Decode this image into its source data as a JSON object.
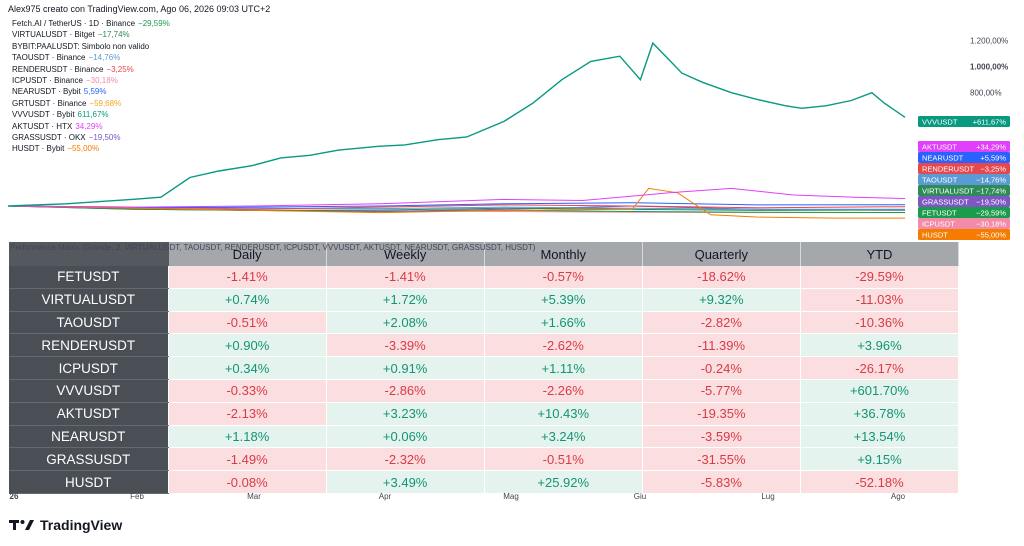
{
  "header": {
    "author_line": "Alex975 creato con TradingView.com, Ago 06, 2026 09:03 UTC+2"
  },
  "legend": [
    {
      "label": "Fetch.AI / TetherUS · 1D · Binance",
      "change": "−29,59%",
      "color": "#1b9c4d"
    },
    {
      "label": "VIRTUALUSDT · Bitget",
      "change": "−17,74%",
      "color": "#2e8b57"
    },
    {
      "label": "BYBIT:PAALUSDT: Simbolo non valido",
      "change": "",
      "color": "#131722"
    },
    {
      "label": "TAOUSDT · Binance",
      "change": "−14,76%",
      "color": "#5b9bd5"
    },
    {
      "label": "RENDERUSDT · Binance",
      "change": "−3,25%",
      "color": "#e5484d"
    },
    {
      "label": "ICPUSDT · Binance",
      "change": "−30,18%",
      "color": "#f28ba8"
    },
    {
      "label": "NEARUSDT · Bybit",
      "change": "5,59%",
      "color": "#2962ff"
    },
    {
      "label": "GRTUSDT · Binance",
      "change": "−59,68%",
      "color": "#f5a623"
    },
    {
      "label": "VVVUSDT · Bybit",
      "change": "611,67%",
      "color": "#089981"
    },
    {
      "label": "AKTUSDT · HTX",
      "change": "34,29%",
      "color": "#e040fb"
    },
    {
      "label": "GRASSUSDT · OKX",
      "change": "−19,50%",
      "color": "#7e57c2"
    },
    {
      "label": "HUSDT · Bybit",
      "change": "−55,00%",
      "color": "#f57c00"
    }
  ],
  "price_axis": {
    "ticks": [
      "1.200,00%",
      "1.000,00%",
      "800,00%"
    ]
  },
  "price_badges": [
    {
      "label": "VVVUSDT",
      "value": "+611,67%",
      "color": "#089981"
    },
    {
      "label": "AKTUSDT",
      "value": "+34,29%",
      "color": "#e040fb"
    },
    {
      "label": "NEARUSDT",
      "value": "+5,59%",
      "color": "#2962ff"
    },
    {
      "label": "RENDERUSDT",
      "value": "−3,25%",
      "color": "#e5484d"
    },
    {
      "label": "TAOUSDT",
      "value": "−14,76%",
      "color": "#5b9bd5"
    },
    {
      "label": "VIRTUALUSDT",
      "value": "−17,74%",
      "color": "#2e8b57"
    },
    {
      "label": "GRASSUSDT",
      "value": "−19,50%",
      "color": "#7e57c2"
    },
    {
      "label": "FETUSDT",
      "value": "−29,59%",
      "color": "#1b9c4d"
    },
    {
      "label": "ICPUSDT",
      "value": "−30,18%",
      "color": "#f28ba8"
    },
    {
      "label": "HUSDT",
      "value": "−55,00%",
      "color": "#f57c00"
    }
  ],
  "time_axis": {
    "labels": [
      "26",
      "Feb",
      "Mar",
      "Apr",
      "Mag",
      "Giu",
      "Lug",
      "Ago"
    ]
  },
  "matrix": {
    "title": "Performance Matrix (Grande, 2, VIRTUALUSDT, TAOUSDT, RENDERUSDT, ICPUSDT, VVVUSDT, AKTUSDT, NEARUSDT, GRASSUSDT, HUSDT)",
    "columns": [
      "Daily",
      "Weekly",
      "Monthly",
      "Quarterly",
      "YTD"
    ],
    "rows": [
      {
        "symbol": "FETUSDT",
        "values": [
          "-1.41%",
          "-1.41%",
          "-0.57%",
          "-18.62%",
          "-29.59%"
        ]
      },
      {
        "symbol": "VIRTUALUSDT",
        "values": [
          "+0.74%",
          "+1.72%",
          "+5.39%",
          "+9.32%",
          "-11.03%"
        ]
      },
      {
        "symbol": "TAOUSDT",
        "values": [
          "-0.51%",
          "+2.08%",
          "+1.66%",
          "-2.82%",
          "-10.36%"
        ]
      },
      {
        "symbol": "RENDERUSDT",
        "values": [
          "+0.90%",
          "-3.39%",
          "-2.62%",
          "-11.39%",
          "+3.96%"
        ]
      },
      {
        "symbol": "ICPUSDT",
        "values": [
          "+0.34%",
          "+0.91%",
          "+1.11%",
          "-0.24%",
          "-26.17%"
        ]
      },
      {
        "symbol": "VVVUSDT",
        "values": [
          "-0.33%",
          "-2.86%",
          "-2.26%",
          "-5.77%",
          "+601.70%"
        ]
      },
      {
        "symbol": "AKTUSDT",
        "values": [
          "-2.13%",
          "+3.23%",
          "+10.43%",
          "-19.35%",
          "+36.78%"
        ]
      },
      {
        "symbol": "NEARUSDT",
        "values": [
          "+1.18%",
          "+0.06%",
          "+3.24%",
          "-3.59%",
          "+13.54%"
        ]
      },
      {
        "symbol": "GRASSUSDT",
        "values": [
          "-1.49%",
          "-2.32%",
          "-0.51%",
          "-31.55%",
          "+9.15%"
        ]
      },
      {
        "symbol": "HUSDT",
        "values": [
          "-0.08%",
          "+3.49%",
          "+25.92%",
          "-5.83%",
          "-52.18%"
        ]
      }
    ]
  },
  "brand": {
    "name": "TradingView"
  },
  "chart_data": {
    "type": "line",
    "y_unit": "%",
    "ylim": [
      -60,
      1250
    ],
    "series": [
      {
        "name": "VVVUSDT",
        "color": "#089981",
        "points": [
          [
            "2026-01-01",
            0
          ],
          [
            "2026-01-15",
            10
          ],
          [
            "2026-01-31",
            30
          ],
          [
            "2026-02-07",
            40
          ],
          [
            "2026-02-14",
            150
          ],
          [
            "2026-02-21",
            200
          ],
          [
            "2026-03-01",
            240
          ],
          [
            "2026-03-08",
            300
          ],
          [
            "2026-03-15",
            320
          ],
          [
            "2026-03-22",
            360
          ],
          [
            "2026-04-01",
            390
          ],
          [
            "2026-04-07",
            400
          ],
          [
            "2026-04-15",
            440
          ],
          [
            "2026-04-22",
            460
          ],
          [
            "2026-05-01",
            580
          ],
          [
            "2026-05-08",
            720
          ],
          [
            "2026-05-15",
            900
          ],
          [
            "2026-05-22",
            1040
          ],
          [
            "2026-05-29",
            1080
          ],
          [
            "2026-06-03",
            900
          ],
          [
            "2026-06-06",
            1180
          ],
          [
            "2026-06-10",
            1050
          ],
          [
            "2026-06-13",
            950
          ],
          [
            "2026-06-18",
            880
          ],
          [
            "2026-06-25",
            800
          ],
          [
            "2026-07-01",
            750
          ],
          [
            "2026-07-08",
            700
          ],
          [
            "2026-07-12",
            680
          ],
          [
            "2026-07-18",
            700
          ],
          [
            "2026-07-24",
            740
          ],
          [
            "2026-07-29",
            800
          ],
          [
            "2026-08-01",
            720
          ],
          [
            "2026-08-06",
            611.67
          ]
        ]
      },
      {
        "name": "AKTUSDT",
        "color": "#e040fb",
        "points": [
          [
            "2026-01-01",
            0
          ],
          [
            "2026-02-01",
            -5
          ],
          [
            "2026-03-01",
            0
          ],
          [
            "2026-04-01",
            10
          ],
          [
            "2026-05-01",
            30
          ],
          [
            "2026-05-20",
            25
          ],
          [
            "2026-06-10",
            60
          ],
          [
            "2026-06-25",
            80
          ],
          [
            "2026-07-10",
            50
          ],
          [
            "2026-07-25",
            40
          ],
          [
            "2026-08-06",
            34.29
          ]
        ]
      },
      {
        "name": "HUSDT",
        "color": "#f57c00",
        "points": [
          [
            "2026-01-01",
            0
          ],
          [
            "2026-02-01",
            -10
          ],
          [
            "2026-03-01",
            -20
          ],
          [
            "2026-04-01",
            -30
          ],
          [
            "2026-05-01",
            -20
          ],
          [
            "2026-06-01",
            -15
          ],
          [
            "2026-06-05",
            80
          ],
          [
            "2026-06-12",
            60
          ],
          [
            "2026-06-20",
            -40
          ],
          [
            "2026-07-01",
            -50
          ],
          [
            "2026-07-20",
            -55
          ],
          [
            "2026-08-06",
            -55
          ]
        ]
      },
      {
        "name": "NEARUSDT",
        "color": "#2962ff",
        "points": [
          [
            "2026-01-01",
            0
          ],
          [
            "2026-02-01",
            -8
          ],
          [
            "2026-03-01",
            -5
          ],
          [
            "2026-04-01",
            0
          ],
          [
            "2026-05-01",
            10
          ],
          [
            "2026-06-01",
            15
          ],
          [
            "2026-07-01",
            5
          ],
          [
            "2026-08-06",
            5.59
          ]
        ]
      },
      {
        "name": "RENDERUSDT",
        "color": "#e5484d",
        "points": [
          [
            "2026-01-01",
            0
          ],
          [
            "2026-02-01",
            -10
          ],
          [
            "2026-03-01",
            -15
          ],
          [
            "2026-04-01",
            -5
          ],
          [
            "2026-05-01",
            5
          ],
          [
            "2026-06-01",
            0
          ],
          [
            "2026-07-01",
            -8
          ],
          [
            "2026-08-06",
            -3.25
          ]
        ]
      },
      {
        "name": "TAOUSDT",
        "color": "#5b9bd5",
        "points": [
          [
            "2026-01-01",
            0
          ],
          [
            "2026-02-01",
            -5
          ],
          [
            "2026-03-01",
            -10
          ],
          [
            "2026-04-01",
            -12
          ],
          [
            "2026-05-01",
            -5
          ],
          [
            "2026-06-01",
            -10
          ],
          [
            "2026-07-01",
            -15
          ],
          [
            "2026-08-06",
            -14.76
          ]
        ]
      },
      {
        "name": "VIRTUALUSDT",
        "color": "#2e8b57",
        "points": [
          [
            "2026-01-01",
            0
          ],
          [
            "2026-02-01",
            -15
          ],
          [
            "2026-03-01",
            -20
          ],
          [
            "2026-04-01",
            -18
          ],
          [
            "2026-05-01",
            -10
          ],
          [
            "2026-06-01",
            -15
          ],
          [
            "2026-07-01",
            -20
          ],
          [
            "2026-08-06",
            -17.74
          ]
        ]
      },
      {
        "name": "GRASSUSDT",
        "color": "#7e57c2",
        "points": [
          [
            "2026-01-01",
            0
          ],
          [
            "2026-02-01",
            -10
          ],
          [
            "2026-03-01",
            -20
          ],
          [
            "2026-04-01",
            -25
          ],
          [
            "2026-05-01",
            -15
          ],
          [
            "2026-06-01",
            0
          ],
          [
            "2026-07-01",
            -15
          ],
          [
            "2026-08-06",
            -19.5
          ]
        ]
      },
      {
        "name": "FETUSDT",
        "color": "#1b9c4d",
        "points": [
          [
            "2026-01-01",
            0
          ],
          [
            "2026-02-01",
            -15
          ],
          [
            "2026-03-01",
            -20
          ],
          [
            "2026-04-01",
            -25
          ],
          [
            "2026-05-01",
            -20
          ],
          [
            "2026-06-01",
            -25
          ],
          [
            "2026-07-01",
            -28
          ],
          [
            "2026-08-06",
            -29.59
          ]
        ]
      },
      {
        "name": "ICPUSDT",
        "color": "#f28ba8",
        "points": [
          [
            "2026-01-01",
            0
          ],
          [
            "2026-02-01",
            -12
          ],
          [
            "2026-03-01",
            -20
          ],
          [
            "2026-04-01",
            -22
          ],
          [
            "2026-05-01",
            -25
          ],
          [
            "2026-06-01",
            -28
          ],
          [
            "2026-07-01",
            -30
          ],
          [
            "2026-08-06",
            -30.18
          ]
        ]
      }
    ]
  }
}
